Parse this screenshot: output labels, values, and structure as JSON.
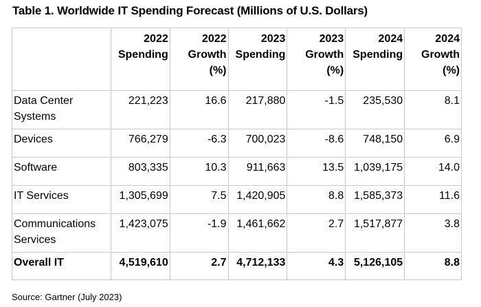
{
  "title": "Table 1. Worldwide IT Spending Forecast (Millions of U.S. Dollars)",
  "table": {
    "headers": [
      [
        "2022",
        "Spending"
      ],
      [
        "2022",
        "Growth",
        "(%)"
      ],
      [
        "2023",
        "Spending"
      ],
      [
        "2023",
        "Growth",
        "(%)"
      ],
      [
        "2024",
        "Spending"
      ],
      [
        "2024",
        "Growth",
        "(%)"
      ]
    ],
    "rows": [
      {
        "label": [
          "Data Center",
          "Systems"
        ],
        "values": [
          "221,223",
          "16.6",
          "217,880",
          "-1.5",
          "235,530",
          "8.1"
        ]
      },
      {
        "label": [
          "Devices"
        ],
        "values": [
          "766,279",
          "-6.3",
          "700,023",
          "-8.6",
          "748,150",
          "6.9"
        ]
      },
      {
        "label": [
          "Software"
        ],
        "values": [
          "803,335",
          "10.3",
          "911,663",
          "13.5",
          "1,039,175",
          "14.0"
        ]
      },
      {
        "label": [
          "IT Services"
        ],
        "values": [
          "1,305,699",
          "7.5",
          "1,420,905",
          "8.8",
          "1,585,373",
          "11.6"
        ]
      },
      {
        "label": [
          "Communications",
          "Services"
        ],
        "values": [
          "1,423,075",
          "-1.9",
          "1,461,662",
          "2.7",
          "1,517,877",
          "3.8"
        ]
      }
    ],
    "total": {
      "label": "Overall IT",
      "values": [
        "4,519,610",
        "2.7",
        "4,712,133",
        "4.3",
        "5,126,105",
        "8.8"
      ]
    }
  },
  "source": "Source: Gartner (July 2023)"
}
